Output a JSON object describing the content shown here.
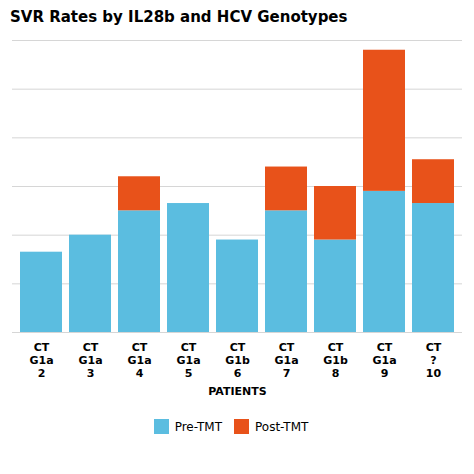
{
  "chart_data": {
    "type": "bar",
    "title": "SVR Rates by IL28b and HCV Genotypes",
    "xlabel": "PATIENTS",
    "categories": [
      "2",
      "3",
      "4",
      "5",
      "6",
      "7",
      "8",
      "9",
      "10"
    ],
    "genotypes": [
      "G1a",
      "G1a",
      "G1a",
      "G1a",
      "G1b",
      "G1a",
      "G1b",
      "G1a",
      "?"
    ],
    "il28b": [
      "CT",
      "CT",
      "CT",
      "CT",
      "CT",
      "CT",
      "CT",
      "CT",
      "CT"
    ],
    "series": [
      {
        "name": "Pre-TMT",
        "color": "#5bbde0",
        "values": [
          33,
          40,
          50,
          53,
          38,
          50,
          38,
          58,
          53
        ]
      },
      {
        "name": "Post-TMT",
        "color": "#e8521a",
        "values": [
          0,
          0,
          14,
          0,
          0,
          18,
          22,
          58,
          18
        ]
      }
    ],
    "stacked": true,
    "ylim": [
      0,
      120
    ],
    "yticks": [
      0,
      20,
      40,
      60,
      80,
      100,
      120
    ],
    "grid": true,
    "tick_labels": "x",
    "legend": "bottom"
  }
}
